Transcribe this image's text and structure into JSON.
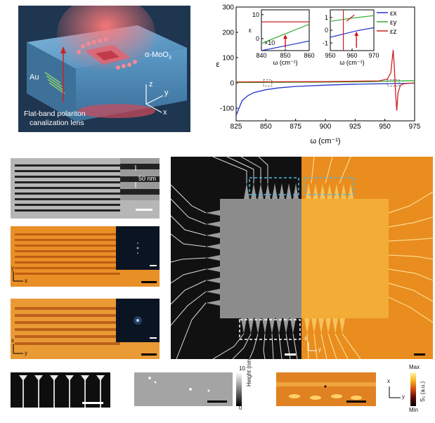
{
  "schematic": {
    "material_label": "α-MoO",
    "material_sub": "3",
    "au_label": "Au",
    "lens_line1": "Flat-band polariton",
    "lens_line2": "canalization lens",
    "axis_x": "x",
    "axis_y": "y",
    "axis_z": "z",
    "colors": {
      "slab": "#4f8fbf",
      "slab_dark": "#2d5e88",
      "beam": "#f05a5a",
      "lens": "#c85060",
      "bg": "#1d3550"
    }
  },
  "chart_data": [
    {
      "type": "line",
      "xlabel": "ω (cm⁻¹)",
      "ylabel": "ε",
      "xlim": [
        825,
        975
      ],
      "ylim": [
        -150,
        300
      ],
      "x_ticks": [
        825,
        850,
        875,
        900,
        925,
        950,
        975
      ],
      "y_ticks": [
        -100,
        0,
        100,
        200,
        300
      ],
      "legend": [
        "εx",
        "εy",
        "εz"
      ],
      "legend_position": "top-right",
      "series": [
        {
          "name": "εx",
          "color": "#2233cc",
          "points": [
            [
              825,
              -128
            ],
            [
              830,
              -70
            ],
            [
              835,
              -50
            ],
            [
              840,
              -38
            ],
            [
              850,
              -27
            ],
            [
              860,
              -20
            ],
            [
              875,
              -14
            ],
            [
              900,
              -9
            ],
            [
              925,
              -5
            ],
            [
              950,
              -3
            ],
            [
              975,
              -1
            ]
          ]
        },
        {
          "name": "εy",
          "color": "#33aa33",
          "points": [
            [
              825,
              2
            ],
            [
              850,
              2
            ],
            [
              900,
              3
            ],
            [
              940,
              5
            ],
            [
              950,
              7
            ],
            [
              975,
              9
            ]
          ]
        },
        {
          "name": "εz",
          "color": "#cc2222",
          "points": [
            [
              825,
              4
            ],
            [
              900,
              5
            ],
            [
              945,
              8
            ],
            [
              952,
              15
            ],
            [
              955,
              40
            ],
            [
              957,
              130
            ],
            [
              958,
              60
            ],
            [
              959,
              -40
            ],
            [
              960,
              -110
            ],
            [
              961,
              -40
            ],
            [
              963,
              -10
            ],
            [
              966,
              -3
            ],
            [
              975,
              0
            ]
          ]
        }
      ]
    },
    {
      "type": "line",
      "xlabel": "ω (cm⁻¹)",
      "ylabel": "ε",
      "xlim": [
        840,
        860
      ],
      "ylim": [
        -5,
        12
      ],
      "x_ticks": [
        840,
        850,
        860
      ],
      "y_ticks": [
        0,
        10
      ],
      "annotation": "×10",
      "series": [
        {
          "name": "εx",
          "color": "#2233cc",
          "points": [
            [
              840,
              -5
            ],
            [
              845,
              -4
            ],
            [
              850,
              -3
            ],
            [
              855,
              -2
            ],
            [
              860,
              -1
            ]
          ]
        },
        {
          "name": "εy",
          "color": "#33aa33",
          "points": [
            [
              840,
              -2
            ],
            [
              850,
              2
            ],
            [
              860,
              6
            ]
          ]
        },
        {
          "name": "εz",
          "color": "#cc2222",
          "points": [
            [
              840,
              7
            ],
            [
              860,
              7
            ]
          ]
        }
      ]
    },
    {
      "type": "line",
      "xlabel": "ω (cm⁻¹)",
      "ylabel": "",
      "xlim": [
        950,
        970
      ],
      "ylim": [
        -1.6,
        1.6
      ],
      "x_ticks": [
        950,
        960,
        970
      ],
      "y_ticks": [
        -1,
        0,
        1
      ],
      "series": [
        {
          "name": "εx",
          "color": "#2233cc",
          "points": [
            [
              950,
              -0.55
            ],
            [
              962,
              -0.05
            ],
            [
              970,
              0.2
            ]
          ]
        },
        {
          "name": "εy",
          "color": "#33aa33",
          "points": [
            [
              950,
              0.7
            ],
            [
              960,
              0.95
            ],
            [
              970,
              1.15
            ]
          ]
        },
        {
          "name": "εz",
          "color": "#cc2222",
          "points": [
            [
              956,
              1.6
            ],
            [
              956,
              -1.6
            ]
          ]
        }
      ]
    }
  ],
  "gratings": {
    "sem_scale": "50 nm",
    "axis_x": "x",
    "axis_y": "y"
  },
  "large_image": {
    "axis_x": "x",
    "axis_y": "y"
  },
  "bottom": {
    "colorbar_height_top": "10",
    "colorbar_height_bottom": "0",
    "colorbar_height_label": "Height (nm)",
    "colorbar_s2_top": "Max",
    "colorbar_s2_bottom": "Min",
    "colorbar_s2_label": "S₂ (a.u.)",
    "axis_x": "x",
    "axis_y": "y"
  }
}
